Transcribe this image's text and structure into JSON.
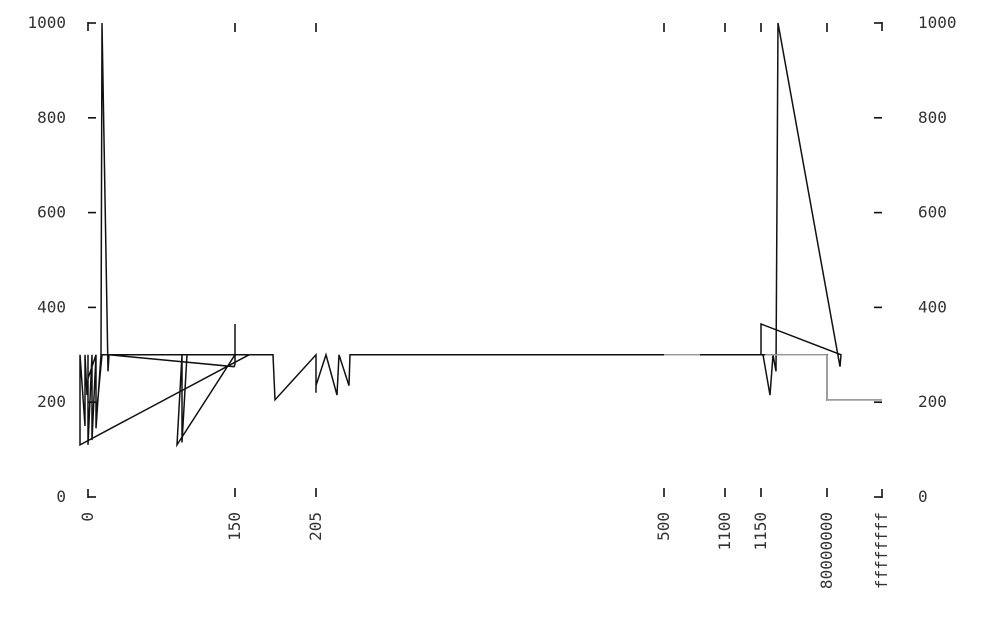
{
  "chart_data": {
    "type": "line",
    "title": "",
    "xlabel": "",
    "ylabel": "",
    "ylim": [
      0,
      1000
    ],
    "yticks": [
      0,
      200,
      400,
      600,
      800,
      1000
    ],
    "xticks": [
      "0",
      "150",
      "205",
      "500",
      "1100",
      "1150",
      "80000000",
      "ffffffff"
    ],
    "y_axes": [
      "left",
      "right"
    ],
    "grid": false,
    "colors": {
      "line": "#111111",
      "tail": "#aaaaaa"
    },
    "series": [
      {
        "baseline": 300,
        "points": [
          {
            "x": "0",
            "y": 300
          },
          {
            "x": "0",
            "y": 110
          },
          {
            "x": "0",
            "y": 300
          },
          {
            "x": "0",
            "y": 120
          },
          {
            "x": "0",
            "y": 300
          },
          {
            "x": "0",
            "y": 165
          },
          {
            "x": "0",
            "y": 300
          },
          {
            "x": "150",
            "y": 300
          },
          {
            "x": "150",
            "y": 110
          },
          {
            "x": "150",
            "y": 300
          },
          {
            "x": "150",
            "y": 150
          },
          {
            "x": "150",
            "y": 300
          },
          {
            "x": "150",
            "y": 215
          },
          {
            "x": "150",
            "y": 250
          },
          {
            "x": "150",
            "y": 300
          },
          {
            "x": "150",
            "y": 145
          },
          {
            "x": "150",
            "y": 300
          },
          {
            "x": "150",
            "y": 1000
          },
          {
            "x": "150",
            "y": 265
          },
          {
            "x": "150",
            "y": 300
          },
          {
            "x": "150",
            "y": 275
          },
          {
            "x": "150",
            "y": 280
          },
          {
            "x": "150",
            "y": 365
          },
          {
            "x": "150",
            "y": 300
          },
          {
            "x": "150",
            "y": 110
          },
          {
            "x": "150",
            "y": 300
          },
          {
            "x": "150",
            "y": 115
          },
          {
            "x": "150",
            "y": 300
          },
          {
            "x": "205",
            "y": 300
          },
          {
            "x": "205",
            "y": 205
          },
          {
            "x": "205",
            "y": 300
          },
          {
            "x": "205",
            "y": 220
          },
          {
            "x": "205",
            "y": 300
          },
          {
            "x": "205",
            "y": 235
          },
          {
            "x": "205",
            "y": 300
          },
          {
            "x": "205",
            "y": 215
          },
          {
            "x": "205",
            "y": 300
          },
          {
            "x": "205",
            "y": 235
          },
          {
            "x": "205",
            "y": 300
          },
          {
            "x": "500",
            "y": 300
          },
          {
            "x": "1100",
            "y": 300
          },
          {
            "x": "1100",
            "y": 215
          },
          {
            "x": "1100",
            "y": 300
          },
          {
            "x": "1100",
            "y": 265
          },
          {
            "x": "1100",
            "y": 1000
          },
          {
            "x": "1100",
            "y": 275
          },
          {
            "x": "1100",
            "y": 300
          },
          {
            "x": "1150",
            "y": 365
          },
          {
            "x": "1150",
            "y": 300
          },
          {
            "x": "80000000",
            "y": 300
          },
          {
            "x": "80000000",
            "y": 205
          },
          {
            "x": "ffffffff",
            "y": 205
          }
        ]
      }
    ]
  }
}
